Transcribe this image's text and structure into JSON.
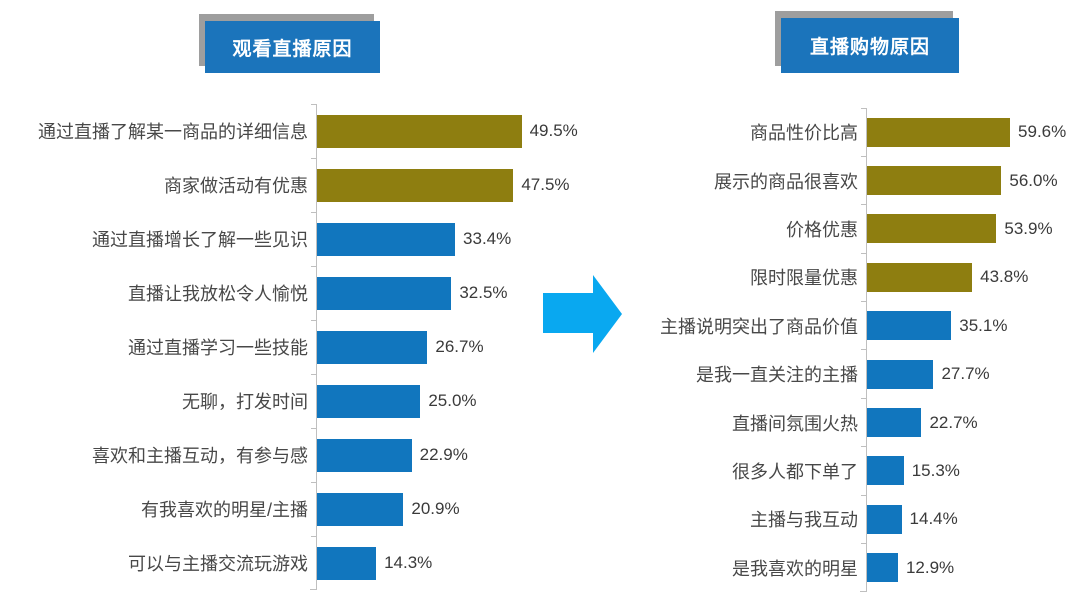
{
  "colors": {
    "gold": "#8e7e10",
    "blue": "#1176be",
    "title_bg": "#1b74bb",
    "title_text": "#ffffff",
    "arrow": "#09a8f0",
    "axis": "#bfbfbf"
  },
  "arrow_icon": "right-arrow",
  "chart_data": [
    {
      "type": "bar",
      "orientation": "horizontal",
      "title": "观看直播原因",
      "unit": "%",
      "xlim": [
        0,
        75
      ],
      "grid": false,
      "legend": false,
      "categories": [
        "通过直播了解某一商品的详细信息",
        "商家做活动有优惠",
        "通过直播增长了解一些见识",
        "直播让我放松令人愉悦",
        "通过直播学习一些技能",
        "无聊，打发时间",
        "喜欢和主播互动，有参与感",
        "有我喜欢的明星/主播",
        "可以与主播交流玩游戏"
      ],
      "values": [
        49.5,
        47.5,
        33.4,
        32.5,
        26.7,
        25.0,
        22.9,
        20.9,
        14.3
      ],
      "value_labels": [
        "49.5%",
        "47.5%",
        "33.4%",
        "32.5%",
        "26.7%",
        "25.0%",
        "22.9%",
        "20.9%",
        "14.3%"
      ],
      "bar_color_keys": [
        "gold",
        "gold",
        "blue",
        "blue",
        "blue",
        "blue",
        "blue",
        "blue",
        "blue"
      ]
    },
    {
      "type": "bar",
      "orientation": "horizontal",
      "title": "直播购物原因",
      "unit": "%",
      "xlim": [
        0,
        65
      ],
      "grid": false,
      "legend": false,
      "categories": [
        "商品性价比高",
        "展示的商品很喜欢",
        "价格优惠",
        "限时限量优惠",
        "主播说明突出了商品价值",
        "是我一直关注的主播",
        "直播间氛围火热",
        "很多人都下单了",
        "主播与我互动",
        "是我喜欢的明星"
      ],
      "values": [
        59.6,
        56.0,
        53.9,
        43.8,
        35.1,
        27.7,
        22.7,
        15.3,
        14.4,
        12.9
      ],
      "value_labels": [
        "59.6%",
        "56.0%",
        "53.9%",
        "43.8%",
        "35.1%",
        "27.7%",
        "22.7%",
        "15.3%",
        "14.4%",
        "12.9%"
      ],
      "bar_color_keys": [
        "gold",
        "gold",
        "gold",
        "gold",
        "blue",
        "blue",
        "blue",
        "blue",
        "blue",
        "blue"
      ]
    }
  ]
}
